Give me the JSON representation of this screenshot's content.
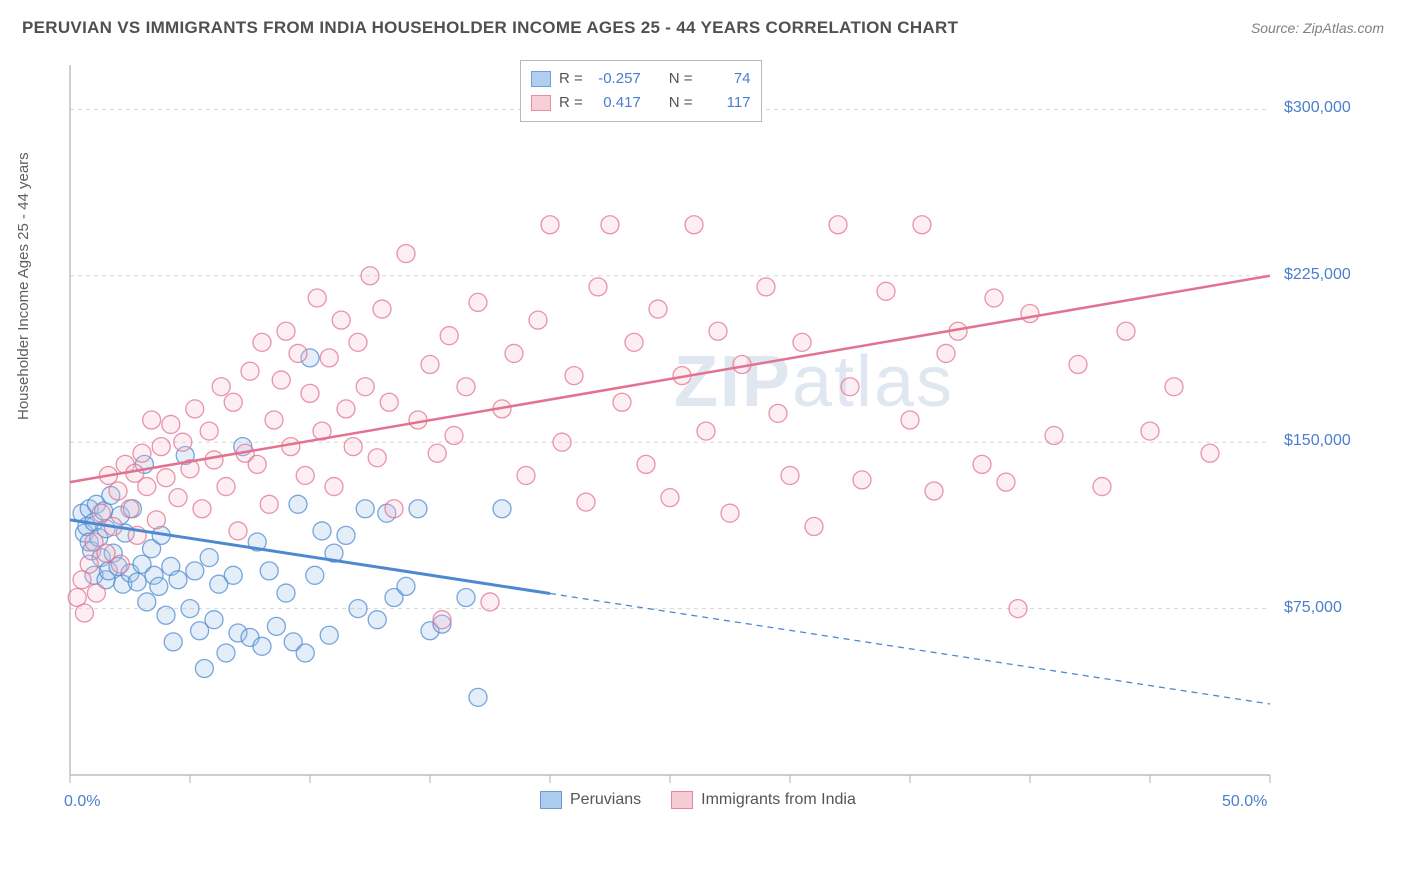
{
  "title": "PERUVIAN VS IMMIGRANTS FROM INDIA HOUSEHOLDER INCOME AGES 25 - 44 YEARS CORRELATION CHART",
  "source": "Source: ZipAtlas.com",
  "ylabel": "Householder Income Ages 25 - 44 years",
  "watermark_prefix": "ZIP",
  "watermark_suffix": "atlas",
  "chart": {
    "type": "scatter",
    "background_color": "#ffffff",
    "grid_color": "#d8d8d8",
    "axis_color": "#b0b0b0",
    "axis_label_color": "#4a7ecf",
    "xlim": [
      0,
      50
    ],
    "ylim": [
      0,
      320000
    ],
    "x_tick_positions": [
      0,
      5,
      10,
      15,
      20,
      25,
      30,
      35,
      40,
      45,
      50
    ],
    "x_tick_labels": {
      "0": "0.0%",
      "50": "50.0%"
    },
    "y_gridlines": [
      75000,
      150000,
      225000,
      300000
    ],
    "y_tick_labels": {
      "75000": "$75,000",
      "150000": "$150,000",
      "225000": "$225,000",
      "300000": "$300,000"
    },
    "marker_radius": 9,
    "marker_fill_opacity": 0.28,
    "marker_stroke_opacity": 0.75,
    "series": [
      {
        "name": "Peruvians",
        "color_fill": "#9fc2ea",
        "color_stroke": "#4d89d1",
        "R": "-0.257",
        "N": "74",
        "trend": {
          "y_at_x0": 115000,
          "y_at_x50": 32000,
          "solid_until_x": 20,
          "line_width": 3
        },
        "points": [
          [
            0.5,
            118000
          ],
          [
            0.6,
            109000
          ],
          [
            0.7,
            112000
          ],
          [
            0.8,
            105000
          ],
          [
            0.8,
            120000
          ],
          [
            0.9,
            101000
          ],
          [
            1.0,
            114000
          ],
          [
            1.0,
            90000
          ],
          [
            1.1,
            122000
          ],
          [
            1.2,
            107000
          ],
          [
            1.3,
            98000
          ],
          [
            1.4,
            119000
          ],
          [
            1.5,
            88000
          ],
          [
            1.5,
            111000
          ],
          [
            1.6,
            92000
          ],
          [
            1.7,
            126000
          ],
          [
            1.8,
            100000
          ],
          [
            2.0,
            94000
          ],
          [
            2.1,
            117000
          ],
          [
            2.2,
            86000
          ],
          [
            2.3,
            109000
          ],
          [
            2.5,
            91000
          ],
          [
            2.6,
            120000
          ],
          [
            2.8,
            87000
          ],
          [
            3.0,
            95000
          ],
          [
            3.1,
            140000
          ],
          [
            3.2,
            78000
          ],
          [
            3.4,
            102000
          ],
          [
            3.5,
            90000
          ],
          [
            3.7,
            85000
          ],
          [
            3.8,
            108000
          ],
          [
            4.0,
            72000
          ],
          [
            4.2,
            94000
          ],
          [
            4.3,
            60000
          ],
          [
            4.5,
            88000
          ],
          [
            4.8,
            144000
          ],
          [
            5.0,
            75000
          ],
          [
            5.2,
            92000
          ],
          [
            5.4,
            65000
          ],
          [
            5.6,
            48000
          ],
          [
            5.8,
            98000
          ],
          [
            6.0,
            70000
          ],
          [
            6.2,
            86000
          ],
          [
            6.5,
            55000
          ],
          [
            6.8,
            90000
          ],
          [
            7.0,
            64000
          ],
          [
            7.2,
            148000
          ],
          [
            7.5,
            62000
          ],
          [
            7.8,
            105000
          ],
          [
            8.0,
            58000
          ],
          [
            8.3,
            92000
          ],
          [
            8.6,
            67000
          ],
          [
            9.0,
            82000
          ],
          [
            9.3,
            60000
          ],
          [
            9.5,
            122000
          ],
          [
            9.8,
            55000
          ],
          [
            10.0,
            188000
          ],
          [
            10.2,
            90000
          ],
          [
            10.5,
            110000
          ],
          [
            10.8,
            63000
          ],
          [
            11.0,
            100000
          ],
          [
            11.5,
            108000
          ],
          [
            12.0,
            75000
          ],
          [
            12.3,
            120000
          ],
          [
            12.8,
            70000
          ],
          [
            13.2,
            118000
          ],
          [
            13.5,
            80000
          ],
          [
            14.0,
            85000
          ],
          [
            14.5,
            120000
          ],
          [
            15.0,
            65000
          ],
          [
            15.5,
            68000
          ],
          [
            16.5,
            80000
          ],
          [
            17.0,
            35000
          ],
          [
            18.0,
            120000
          ]
        ]
      },
      {
        "name": "Immigrants from India",
        "color_fill": "#f4c3cf",
        "color_stroke": "#e2728f",
        "R": "0.417",
        "N": "117",
        "trend": {
          "y_at_x0": 132000,
          "y_at_x50": 225000,
          "solid_until_x": 50,
          "line_width": 2.5
        },
        "points": [
          [
            0.3,
            80000
          ],
          [
            0.5,
            88000
          ],
          [
            0.6,
            73000
          ],
          [
            0.8,
            95000
          ],
          [
            1.0,
            105000
          ],
          [
            1.1,
            82000
          ],
          [
            1.3,
            118000
          ],
          [
            1.5,
            100000
          ],
          [
            1.6,
            135000
          ],
          [
            1.8,
            112000
          ],
          [
            2.0,
            128000
          ],
          [
            2.1,
            95000
          ],
          [
            2.3,
            140000
          ],
          [
            2.5,
            120000
          ],
          [
            2.7,
            136000
          ],
          [
            2.8,
            108000
          ],
          [
            3.0,
            145000
          ],
          [
            3.2,
            130000
          ],
          [
            3.4,
            160000
          ],
          [
            3.6,
            115000
          ],
          [
            3.8,
            148000
          ],
          [
            4.0,
            134000
          ],
          [
            4.2,
            158000
          ],
          [
            4.5,
            125000
          ],
          [
            4.7,
            150000
          ],
          [
            5.0,
            138000
          ],
          [
            5.2,
            165000
          ],
          [
            5.5,
            120000
          ],
          [
            5.8,
            155000
          ],
          [
            6.0,
            142000
          ],
          [
            6.3,
            175000
          ],
          [
            6.5,
            130000
          ],
          [
            6.8,
            168000
          ],
          [
            7.0,
            110000
          ],
          [
            7.3,
            145000
          ],
          [
            7.5,
            182000
          ],
          [
            7.8,
            140000
          ],
          [
            8.0,
            195000
          ],
          [
            8.3,
            122000
          ],
          [
            8.5,
            160000
          ],
          [
            8.8,
            178000
          ],
          [
            9.0,
            200000
          ],
          [
            9.2,
            148000
          ],
          [
            9.5,
            190000
          ],
          [
            9.8,
            135000
          ],
          [
            10.0,
            172000
          ],
          [
            10.3,
            215000
          ],
          [
            10.5,
            155000
          ],
          [
            10.8,
            188000
          ],
          [
            11.0,
            130000
          ],
          [
            11.3,
            205000
          ],
          [
            11.5,
            165000
          ],
          [
            11.8,
            148000
          ],
          [
            12.0,
            195000
          ],
          [
            12.3,
            175000
          ],
          [
            12.5,
            225000
          ],
          [
            12.8,
            143000
          ],
          [
            13.0,
            210000
          ],
          [
            13.3,
            168000
          ],
          [
            13.5,
            120000
          ],
          [
            14.0,
            235000
          ],
          [
            14.5,
            160000
          ],
          [
            15.0,
            185000
          ],
          [
            15.3,
            145000
          ],
          [
            15.5,
            70000
          ],
          [
            15.8,
            198000
          ],
          [
            16.0,
            153000
          ],
          [
            16.5,
            175000
          ],
          [
            17.0,
            213000
          ],
          [
            17.5,
            78000
          ],
          [
            18.0,
            165000
          ],
          [
            18.5,
            190000
          ],
          [
            19.0,
            135000
          ],
          [
            19.5,
            205000
          ],
          [
            20.0,
            248000
          ],
          [
            20.5,
            150000
          ],
          [
            21.0,
            180000
          ],
          [
            21.5,
            123000
          ],
          [
            22.0,
            220000
          ],
          [
            22.5,
            248000
          ],
          [
            23.0,
            168000
          ],
          [
            23.5,
            195000
          ],
          [
            24.0,
            140000
          ],
          [
            24.5,
            210000
          ],
          [
            25.0,
            125000
          ],
          [
            25.5,
            180000
          ],
          [
            26.0,
            248000
          ],
          [
            26.5,
            155000
          ],
          [
            27.0,
            200000
          ],
          [
            27.5,
            118000
          ],
          [
            28.0,
            185000
          ],
          [
            29.0,
            220000
          ],
          [
            29.5,
            163000
          ],
          [
            30.0,
            135000
          ],
          [
            30.5,
            195000
          ],
          [
            31.0,
            112000
          ],
          [
            32.0,
            248000
          ],
          [
            32.5,
            175000
          ],
          [
            33.0,
            133000
          ],
          [
            34.0,
            218000
          ],
          [
            35.0,
            160000
          ],
          [
            35.5,
            248000
          ],
          [
            36.0,
            128000
          ],
          [
            36.5,
            190000
          ],
          [
            37.0,
            200000
          ],
          [
            38.0,
            140000
          ],
          [
            38.5,
            215000
          ],
          [
            39.0,
            132000
          ],
          [
            39.5,
            75000
          ],
          [
            40.0,
            208000
          ],
          [
            41.0,
            153000
          ],
          [
            42.0,
            185000
          ],
          [
            43.0,
            130000
          ],
          [
            44.0,
            200000
          ],
          [
            45.0,
            155000
          ],
          [
            46.0,
            175000
          ],
          [
            47.5,
            145000
          ]
        ]
      }
    ]
  },
  "legend": {
    "series1_label": "Peruvians",
    "series2_label": "Immigrants from India"
  },
  "stats_box": {
    "R_label": "R =",
    "N_label": "N ="
  }
}
